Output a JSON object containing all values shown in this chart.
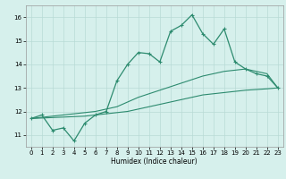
{
  "xlabel": "Humidex (Indice chaleur)",
  "line_color": "#2d8b6f",
  "bg_color": "#d6f0ec",
  "grid_color": "#b8dbd6",
  "ylim": [
    10.5,
    16.5
  ],
  "xlim": [
    -0.5,
    23.5
  ],
  "yticks": [
    11,
    12,
    13,
    14,
    15,
    16
  ],
  "xticks": [
    0,
    1,
    2,
    3,
    4,
    5,
    6,
    7,
    8,
    9,
    10,
    11,
    12,
    13,
    14,
    15,
    16,
    17,
    18,
    19,
    20,
    21,
    22,
    23
  ],
  "x_hours": [
    0,
    1,
    2,
    3,
    4,
    5,
    6,
    7,
    8,
    9,
    10,
    11,
    12,
    13,
    14,
    15,
    16,
    17,
    18,
    19,
    20,
    21,
    22,
    23
  ],
  "y_main": [
    11.7,
    11.85,
    11.2,
    11.3,
    10.75,
    11.5,
    11.85,
    12.0,
    13.3,
    14.0,
    14.5,
    14.45,
    14.1,
    15.4,
    15.65,
    16.1,
    15.3,
    14.85,
    15.5,
    14.1,
    13.8,
    13.6,
    13.5,
    13.0
  ],
  "y_upper": [
    11.7,
    11.75,
    11.8,
    11.85,
    11.9,
    11.95,
    12.0,
    12.1,
    12.2,
    12.4,
    12.6,
    12.75,
    12.9,
    13.05,
    13.2,
    13.35,
    13.5,
    13.6,
    13.7,
    13.75,
    13.8,
    13.7,
    13.6,
    13.0
  ],
  "y_lower": [
    11.7,
    11.72,
    11.74,
    11.76,
    11.78,
    11.8,
    11.85,
    11.9,
    11.95,
    12.0,
    12.1,
    12.2,
    12.3,
    12.4,
    12.5,
    12.6,
    12.7,
    12.75,
    12.8,
    12.85,
    12.9,
    12.93,
    12.96,
    13.0
  ]
}
